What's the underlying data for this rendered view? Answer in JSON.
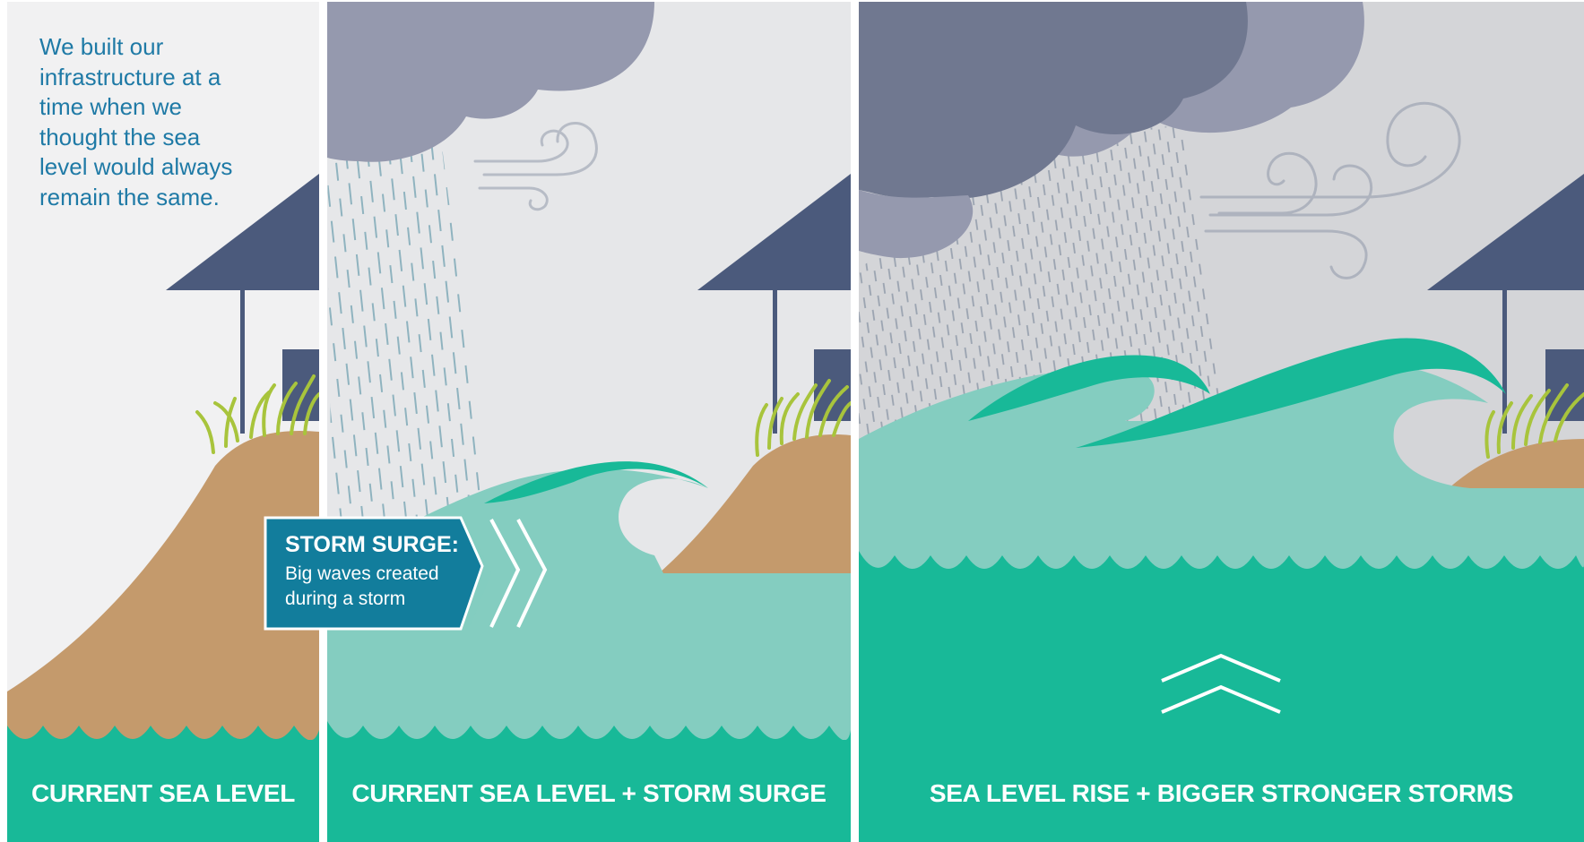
{
  "intro_text": "We built our infrastructure at a time when we thought the sea level would always remain the same.",
  "panels": [
    {
      "caption": "CURRENT SEA LEVEL"
    },
    {
      "caption": "CURRENT SEA LEVEL + STORM SURGE"
    },
    {
      "caption": "SEA LEVEL RISE + BIGGER STRONGER STORMS"
    }
  ],
  "callout": {
    "title": "STORM SURGE:",
    "text": "Big waves created during a storm"
  },
  "colors": {
    "sky_light": "#f1f1f2",
    "sky_mid": "#e6e7e9",
    "sky_dark": "#d4d5d8",
    "cloud_light": "#9599ae",
    "cloud_dark": "#707890",
    "roof": "#4b5a7c",
    "hill": "#c49a6c",
    "grass": "#a8c43c",
    "water": "#18b998",
    "wave_light": "#84cdc0",
    "callout": "#127d9c",
    "intro_text": "#1f7aa6"
  }
}
